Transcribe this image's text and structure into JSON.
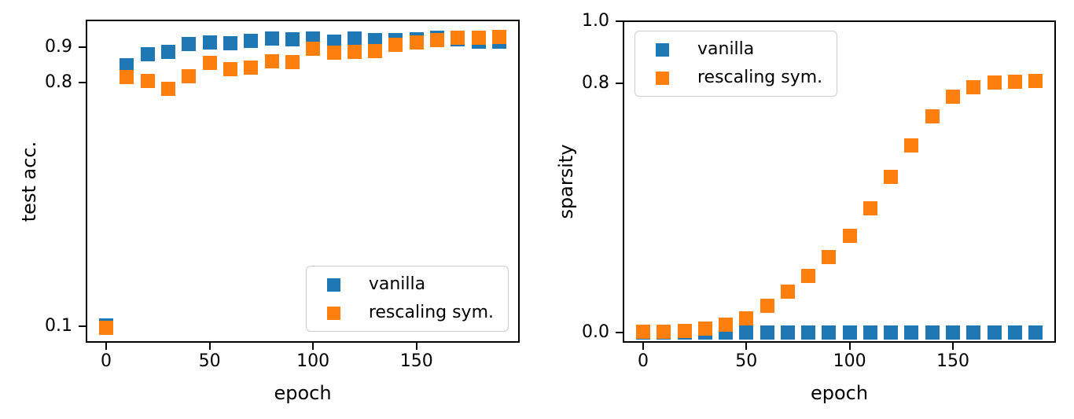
{
  "colors": {
    "vanilla": "#1f77b4",
    "rescaling": "#ff7f0e",
    "spine": "#000000",
    "legend_border": "#cccccc",
    "background": "#ffffff"
  },
  "chart_data": [
    {
      "type": "scatter",
      "title": "",
      "xlabel": "epoch",
      "ylabel": "test acc.",
      "x": [
        0,
        10,
        20,
        30,
        40,
        50,
        60,
        70,
        80,
        90,
        100,
        110,
        120,
        130,
        140,
        150,
        160,
        170,
        180,
        190
      ],
      "series": [
        {
          "name": "vanilla",
          "color": "#1f77b4",
          "values": [
            0.103,
            0.848,
            0.88,
            0.887,
            0.909,
            0.914,
            0.911,
            0.919,
            0.925,
            0.922,
            0.925,
            0.916,
            0.926,
            0.92,
            0.92,
            0.922,
            0.927,
            0.922,
            0.917,
            0.916
          ]
        },
        {
          "name": "rescaling sym.",
          "color": "#ff7f0e",
          "values": [
            0.096,
            0.815,
            0.803,
            0.781,
            0.816,
            0.856,
            0.838,
            0.842,
            0.861,
            0.857,
            0.896,
            0.885,
            0.886,
            0.89,
            0.907,
            0.915,
            0.92,
            0.927,
            0.928,
            0.93
          ]
        }
      ],
      "xlim": [
        -9.5,
        199.5
      ],
      "ylim": [
        0.055,
        0.977
      ],
      "xticks": [
        0,
        50,
        100,
        150
      ],
      "xtick_labels": [
        "0",
        "50",
        "100",
        "150"
      ],
      "yticks": [
        0.1,
        0.8,
        0.9
      ],
      "ytick_labels": [
        "0.1",
        "0.8",
        "0.9"
      ],
      "grid": false,
      "legend_position": "lower right"
    },
    {
      "type": "scatter",
      "title": "",
      "xlabel": "epoch",
      "ylabel": "sparsity",
      "x": [
        0,
        10,
        20,
        30,
        40,
        50,
        60,
        70,
        80,
        90,
        100,
        110,
        120,
        130,
        140,
        150,
        160,
        170,
        180,
        190
      ],
      "series": [
        {
          "name": "vanilla",
          "color": "#1f77b4",
          "values": [
            0.0,
            0.0,
            0.0,
            0.0,
            0.0,
            0.0,
            0.0,
            0.0,
            0.0,
            0.0,
            0.0,
            0.0,
            0.0,
            0.0,
            0.0,
            0.0,
            0.0,
            0.0,
            0.0,
            0.0
          ]
        },
        {
          "name": "rescaling sym.",
          "color": "#ff7f0e",
          "values": [
            0.002,
            0.003,
            0.006,
            0.012,
            0.025,
            0.045,
            0.086,
            0.131,
            0.182,
            0.243,
            0.31,
            0.4,
            0.5,
            0.6,
            0.695,
            0.757,
            0.787,
            0.803,
            0.806,
            0.808
          ]
        }
      ],
      "xlim": [
        -9.5,
        199.5
      ],
      "ylim": [
        -0.03,
        1.0
      ],
      "xticks": [
        0,
        50,
        100,
        150
      ],
      "xtick_labels": [
        "0",
        "50",
        "100",
        "150"
      ],
      "yticks": [
        0.0,
        0.8,
        1.0
      ],
      "ytick_labels": [
        "0.0",
        "0.8",
        "1.0"
      ],
      "grid": false,
      "legend_position": "upper left"
    }
  ]
}
